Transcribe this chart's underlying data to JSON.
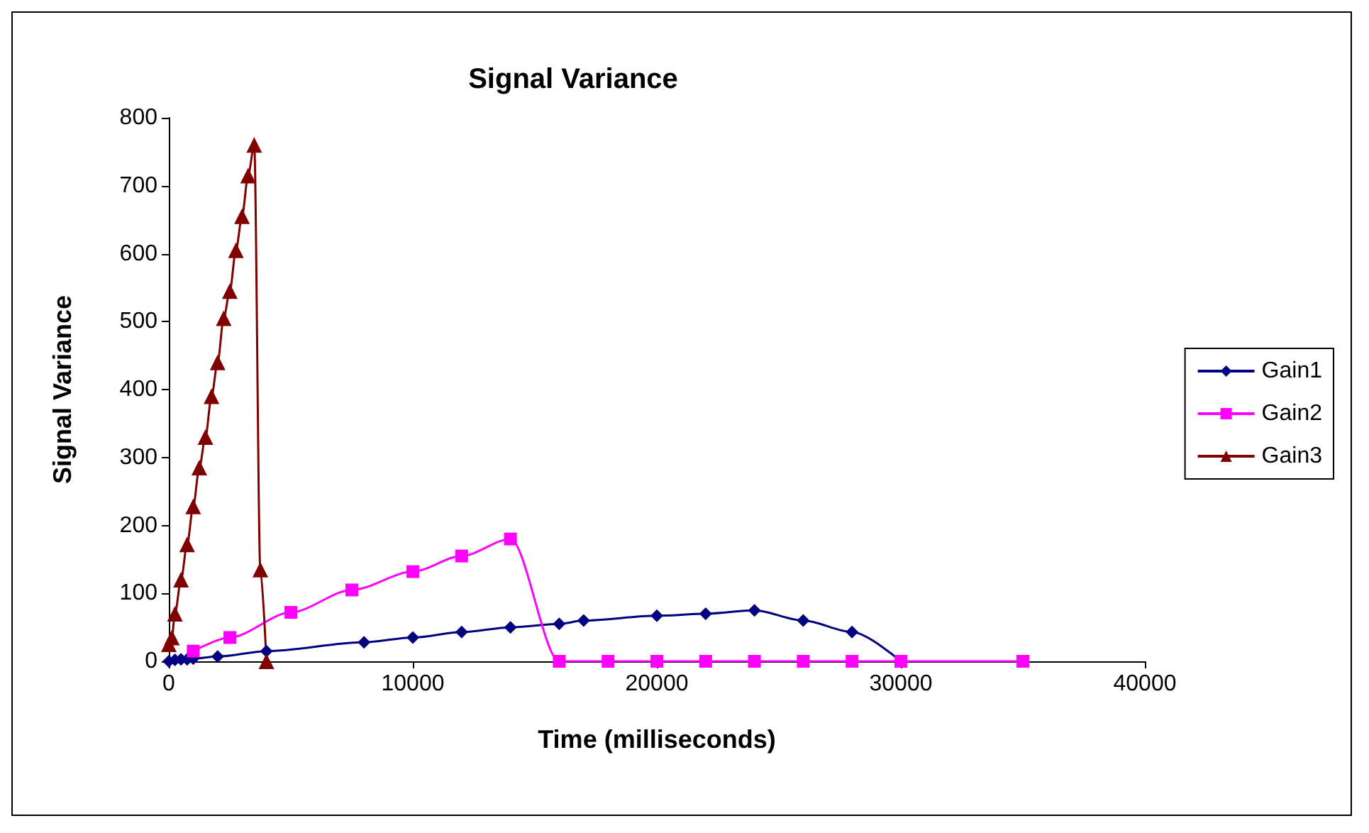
{
  "chart_data": {
    "type": "line",
    "title": "Signal Variance",
    "xlabel": "Time (milliseconds)",
    "ylabel": "Signal Variance",
    "xlim": [
      0,
      40000
    ],
    "xticks": [
      0,
      10000,
      20000,
      30000,
      40000
    ],
    "ylim": [
      0,
      800
    ],
    "yticks": [
      0,
      100,
      200,
      300,
      400,
      500,
      600,
      700,
      800
    ],
    "grid": false,
    "legend": "right",
    "series": [
      {
        "name": "Gain1",
        "color": "#000080",
        "marker": "diamond",
        "x": [
          0,
          250,
          500,
          750,
          1000,
          2000,
          4000,
          8000,
          10000,
          12000,
          14000,
          16000,
          17000,
          20000,
          22000,
          24000,
          26000,
          28000,
          30000
        ],
        "values": [
          0,
          2,
          3,
          3,
          4,
          7,
          15,
          28,
          35,
          43,
          50,
          55,
          60,
          67,
          70,
          75,
          60,
          43,
          0
        ]
      },
      {
        "name": "Gain2",
        "color": "#ff00ff",
        "marker": "square",
        "x": [
          1000,
          2500,
          5000,
          7500,
          10000,
          12000,
          14000,
          16000,
          18000,
          20000,
          22000,
          24000,
          26000,
          28000,
          30000,
          35000
        ],
        "values": [
          15,
          35,
          72,
          105,
          132,
          155,
          180,
          0,
          0,
          0,
          0,
          0,
          0,
          0,
          0,
          0
        ]
      },
      {
        "name": "Gain3",
        "color": "#800000",
        "marker": "triangle",
        "x": [
          0,
          125,
          250,
          500,
          750,
          1000,
          1250,
          1500,
          1750,
          2000,
          2250,
          2500,
          2750,
          3000,
          3250,
          3500,
          3750,
          4000
        ],
        "values": [
          25,
          35,
          70,
          120,
          172,
          228,
          285,
          330,
          390,
          440,
          505,
          545,
          605,
          655,
          715,
          760,
          135,
          0
        ]
      }
    ]
  }
}
